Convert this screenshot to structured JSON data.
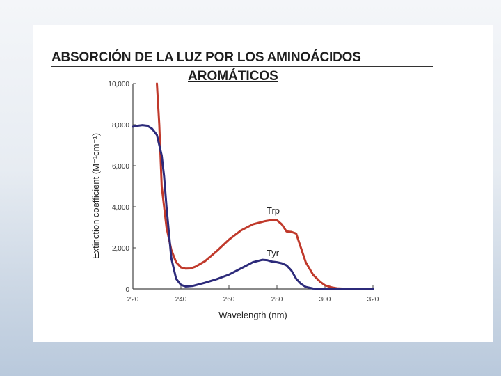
{
  "slide": {
    "title_line1": "ABSORCIÓN DE LA LUZ POR LOS AMINOÁCIDOS",
    "title_line2": "AROMÁTICOS"
  },
  "chart_data": {
    "type": "line",
    "xlabel": "Wavelength (nm)",
    "ylabel": "Extinction coefficient (M⁻¹cm⁻¹)",
    "xlim": [
      220,
      320
    ],
    "ylim": [
      0,
      10000
    ],
    "x_ticks": [
      220,
      240,
      260,
      280,
      300,
      320
    ],
    "y_ticks": [
      0,
      2000,
      4000,
      6000,
      8000,
      10000
    ],
    "x_tick_labels": [
      "220",
      "240",
      "260",
      "280",
      "300",
      "320"
    ],
    "y_tick_labels": [
      "0",
      "2,000",
      "4,000",
      "6,000",
      "8,000",
      "10,000"
    ],
    "grid": false,
    "series": [
      {
        "name": "Trp",
        "color": "#c0392b",
        "x": [
          230,
          231,
          232,
          234,
          236,
          238,
          240,
          242,
          244,
          246,
          250,
          255,
          260,
          265,
          270,
          275,
          278,
          280,
          282,
          284,
          286,
          288,
          290,
          292,
          295,
          298,
          300,
          303,
          305,
          310
        ],
        "y": [
          10000,
          8000,
          5000,
          3000,
          1900,
          1300,
          1050,
          990,
          1000,
          1080,
          1350,
          1850,
          2400,
          2850,
          3150,
          3300,
          3360,
          3350,
          3150,
          2800,
          2780,
          2700,
          2000,
          1300,
          700,
          350,
          180,
          70,
          30,
          0
        ]
      },
      {
        "name": "Tyr",
        "color": "#2c2a7a",
        "x": [
          220,
          222,
          224,
          226,
          228,
          230,
          232,
          233,
          234,
          236,
          238,
          240,
          242,
          245,
          250,
          255,
          260,
          265,
          270,
          274,
          276,
          278,
          280,
          282,
          284,
          286,
          288,
          290,
          292,
          295,
          300,
          310,
          320
        ],
        "y": [
          7900,
          7950,
          7980,
          7950,
          7800,
          7500,
          6500,
          5500,
          4000,
          1500,
          500,
          200,
          120,
          150,
          300,
          480,
          700,
          1000,
          1300,
          1420,
          1400,
          1330,
          1300,
          1250,
          1150,
          900,
          500,
          250,
          100,
          20,
          0,
          0,
          0
        ]
      }
    ]
  }
}
